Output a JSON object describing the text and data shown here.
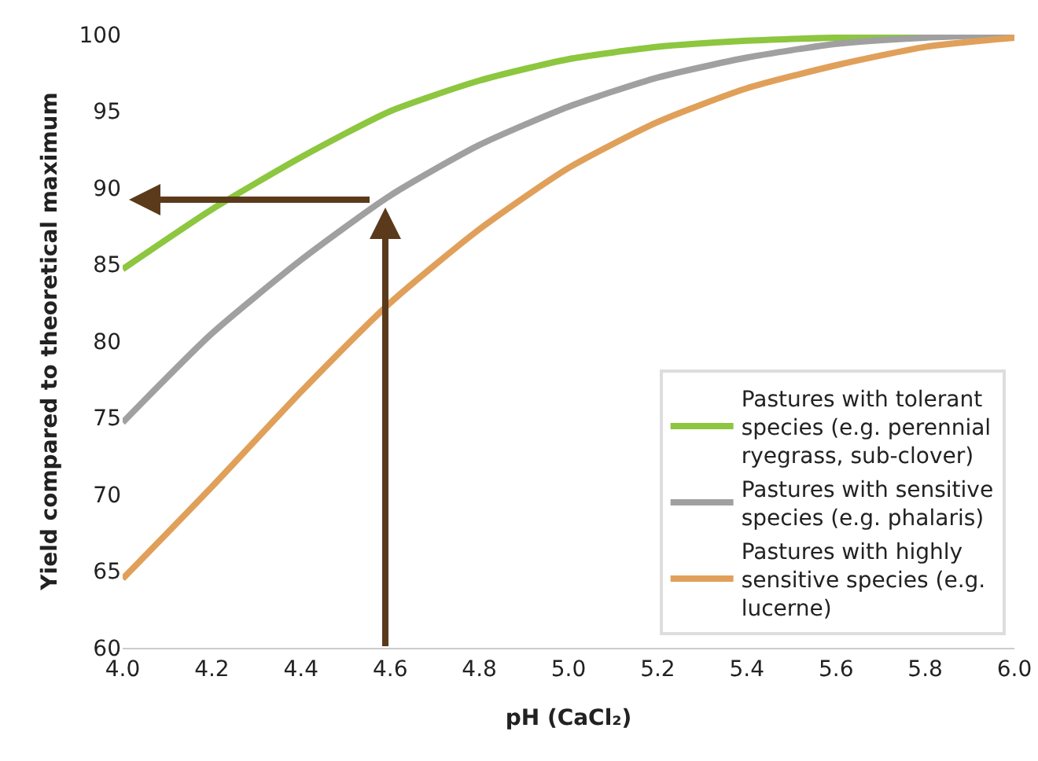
{
  "chart_data": {
    "type": "line",
    "xlabel": "pH (CaCl₂)",
    "ylabel": "Yield compared to theoretical maximum",
    "x": [
      4.0,
      4.2,
      4.4,
      4.6,
      4.8,
      5.0,
      5.2,
      5.4,
      5.6,
      5.8,
      6.0
    ],
    "series": [
      {
        "name": "Pastures with tolerant species (e.g. perennial ryegrass, sub-clover)",
        "color": "#8dc63f",
        "values": [
          84.7,
          88.6,
          92.0,
          95.0,
          97.0,
          98.4,
          99.2,
          99.6,
          99.8,
          99.9,
          100
        ]
      },
      {
        "name": "Pastures with sensitive species (e.g. phalaris)",
        "color": "#a0a0a0",
        "values": [
          74.7,
          80.5,
          85.3,
          89.5,
          92.8,
          95.3,
          97.2,
          98.5,
          99.4,
          99.8,
          100
        ]
      },
      {
        "name": "Pastures with highly sensitive species (e.g. lucerne)",
        "color": "#e0a05a",
        "values": [
          64.5,
          70.5,
          76.7,
          82.5,
          87.3,
          91.3,
          94.3,
          96.5,
          98.0,
          99.2,
          99.8
        ]
      }
    ],
    "xlim": [
      4.0,
      6.0
    ],
    "xticks": [
      {
        "value": 4.0,
        "label": "4.0"
      },
      {
        "value": 4.2,
        "label": "4.2"
      },
      {
        "value": 4.4,
        "label": "4.4"
      },
      {
        "value": 4.6,
        "label": "4.6"
      },
      {
        "value": 4.8,
        "label": "4.8"
      },
      {
        "value": 5.0,
        "label": "5.0"
      },
      {
        "value": 5.2,
        "label": "5.2"
      },
      {
        "value": 5.4,
        "label": "5.4"
      },
      {
        "value": 5.6,
        "label": "5.6"
      },
      {
        "value": 5.8,
        "label": "5.8"
      },
      {
        "value": 6.0,
        "label": "6.0"
      }
    ],
    "ylim": [
      60,
      100
    ],
    "yticks": [
      60,
      65,
      70,
      75,
      80,
      85,
      90,
      95,
      100
    ],
    "grid": false,
    "legend": "bottom right",
    "marker": "none",
    "line_style": "solid"
  }
}
